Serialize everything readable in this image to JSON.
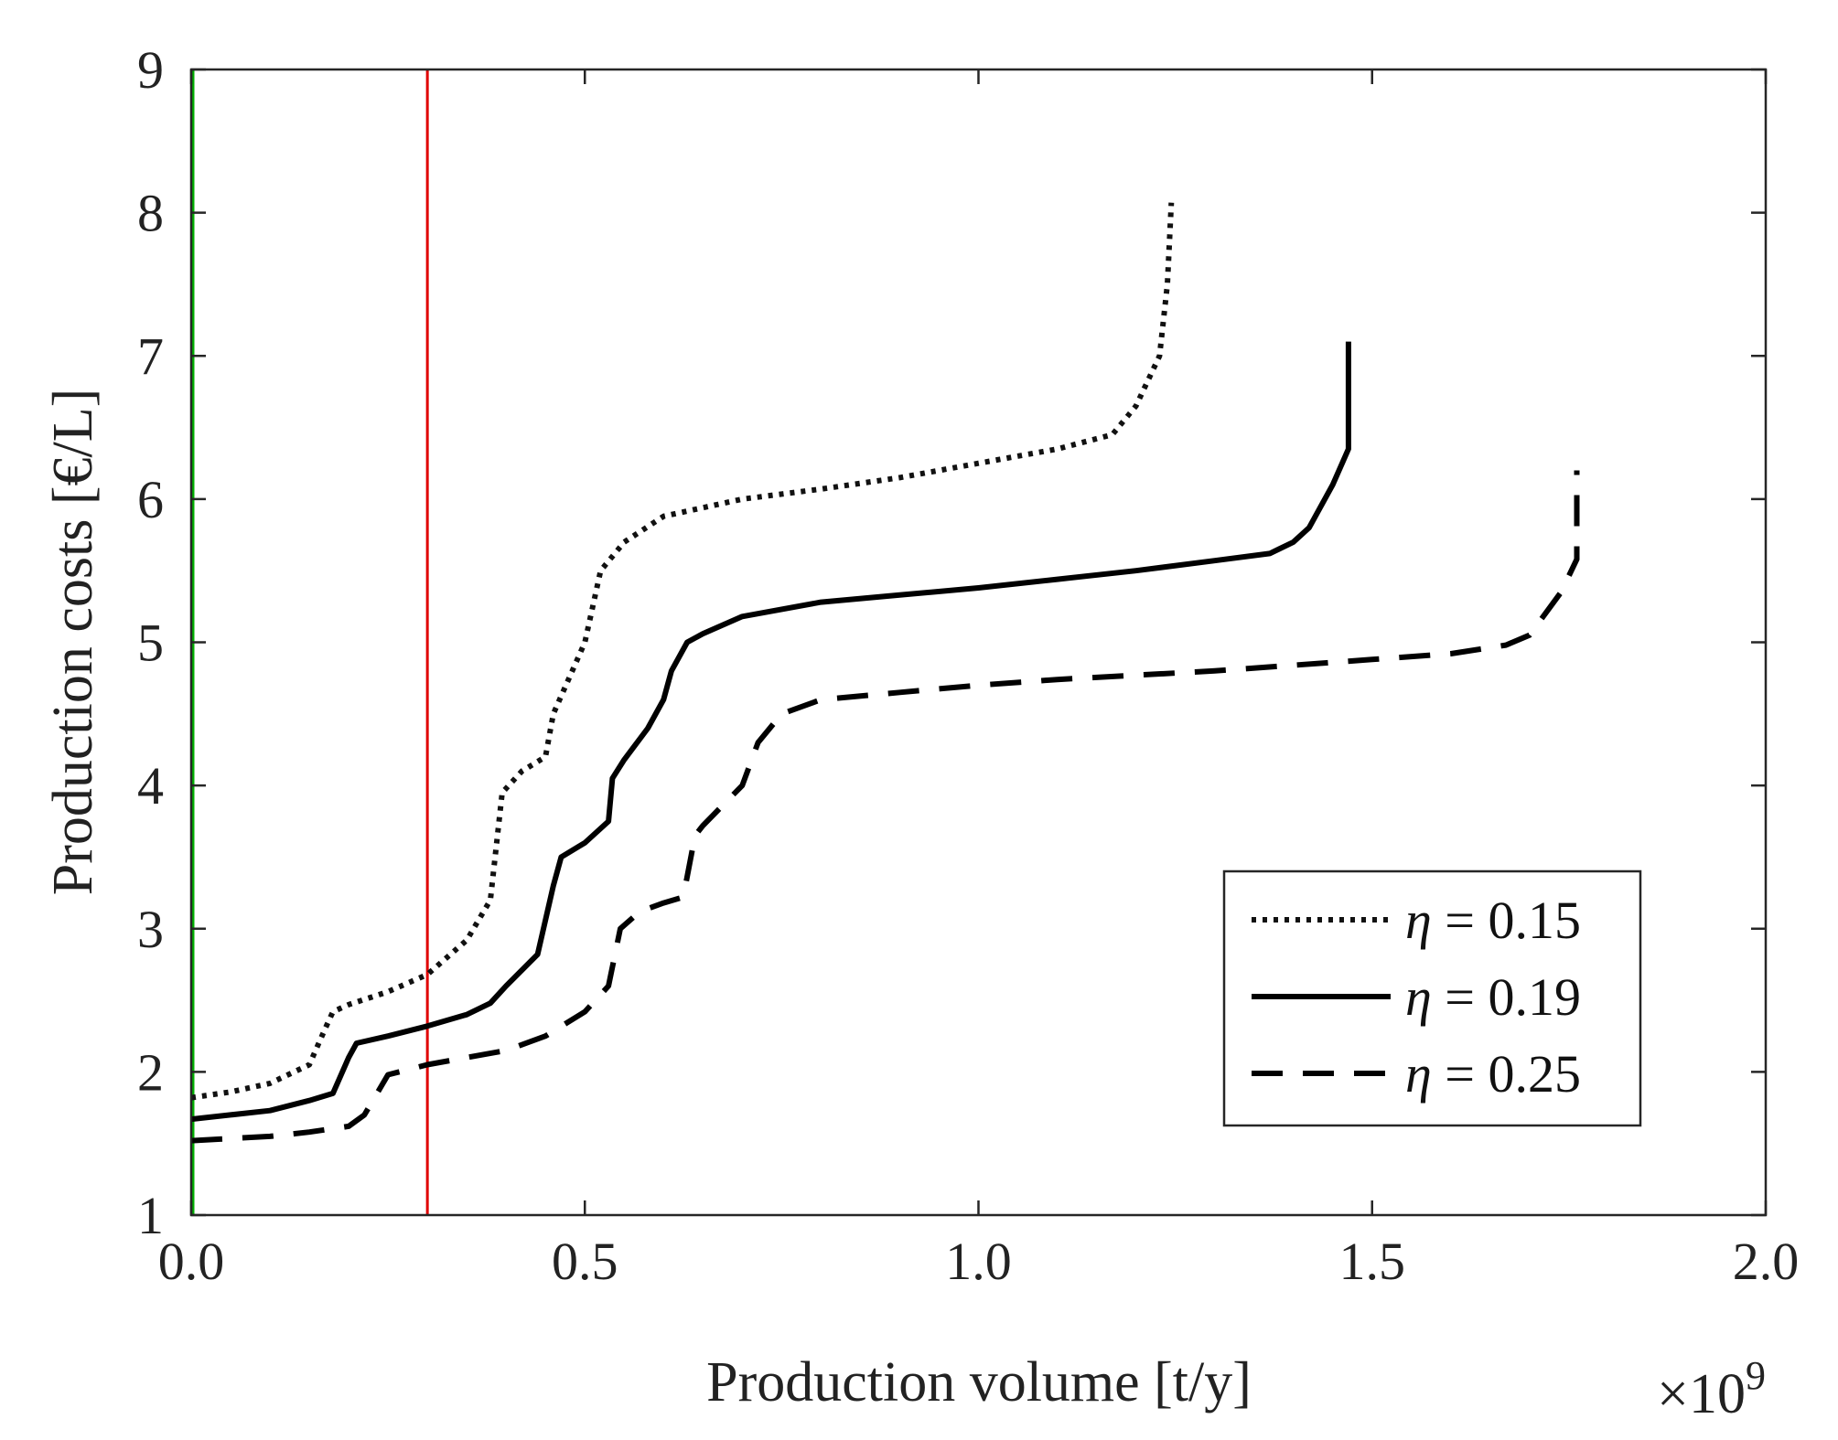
{
  "chart_data": {
    "type": "line",
    "xlabel": "Production volume [t/y]",
    "ylabel": "Production costs [€/L]",
    "x_scale_label": "×10",
    "x_scale_exponent": "9",
    "xlim": [
      0,
      2.0
    ],
    "ylim": [
      1,
      9
    ],
    "xticks": [
      0,
      0.5,
      1.0,
      1.5,
      2.0
    ],
    "xtick_labels": [
      "0.0",
      "0.5",
      "1.0",
      "1.5",
      "2.0"
    ],
    "yticks": [
      1,
      2,
      3,
      4,
      5,
      6,
      7,
      8,
      9
    ],
    "ytick_labels": [
      "1",
      "2",
      "3",
      "4",
      "5",
      "6",
      "7",
      "8",
      "9"
    ],
    "grid": false,
    "legend_position": "bottom-right",
    "vertical_lines": [
      {
        "x": 0.0,
        "color": "#00b000"
      },
      {
        "x": 0.3,
        "color": "#e00000"
      }
    ],
    "series": [
      {
        "name": "η = 0.15",
        "legend_symbol": "η",
        "legend_value": " = 0.15",
        "style": "dotted",
        "color": "#111111",
        "x": [
          0,
          0.05,
          0.1,
          0.15,
          0.17,
          0.18,
          0.2,
          0.25,
          0.3,
          0.35,
          0.38,
          0.395,
          0.42,
          0.45,
          0.46,
          0.5,
          0.52,
          0.55,
          0.6,
          0.7,
          0.8,
          0.9,
          1.0,
          1.1,
          1.17,
          1.2,
          1.23,
          1.24,
          1.245
        ],
        "y": [
          1.82,
          1.86,
          1.92,
          2.05,
          2.3,
          2.42,
          2.47,
          2.56,
          2.68,
          2.92,
          3.2,
          3.95,
          4.1,
          4.2,
          4.5,
          5.0,
          5.5,
          5.7,
          5.88,
          6.0,
          6.07,
          6.15,
          6.25,
          6.35,
          6.45,
          6.65,
          7.0,
          7.5,
          8.07
        ]
      },
      {
        "name": "η = 0.19",
        "legend_symbol": "η",
        "legend_value": " = 0.19",
        "style": "solid",
        "color": "#000000",
        "x": [
          0,
          0.05,
          0.1,
          0.15,
          0.18,
          0.2,
          0.21,
          0.25,
          0.3,
          0.35,
          0.38,
          0.4,
          0.44,
          0.46,
          0.47,
          0.5,
          0.53,
          0.535,
          0.55,
          0.58,
          0.6,
          0.61,
          0.63,
          0.65,
          0.7,
          0.8,
          0.9,
          1.0,
          1.1,
          1.2,
          1.3,
          1.37,
          1.4,
          1.42,
          1.45,
          1.47,
          1.47
        ],
        "y": [
          1.67,
          1.7,
          1.73,
          1.8,
          1.85,
          2.1,
          2.2,
          2.25,
          2.32,
          2.4,
          2.48,
          2.6,
          2.82,
          3.3,
          3.5,
          3.6,
          3.75,
          4.05,
          4.18,
          4.4,
          4.6,
          4.8,
          5.0,
          5.06,
          5.18,
          5.28,
          5.33,
          5.38,
          5.44,
          5.5,
          5.57,
          5.62,
          5.7,
          5.8,
          6.1,
          6.35,
          7.1
        ]
      },
      {
        "name": "η = 0.25",
        "legend_symbol": "η",
        "legend_value": " = 0.25",
        "style": "dashed",
        "color": "#000000",
        "x": [
          0,
          0.1,
          0.15,
          0.2,
          0.22,
          0.25,
          0.3,
          0.35,
          0.4,
          0.45,
          0.5,
          0.53,
          0.545,
          0.57,
          0.6,
          0.625,
          0.64,
          0.65,
          0.7,
          0.72,
          0.75,
          0.8,
          0.9,
          1.0,
          1.1,
          1.2,
          1.3,
          1.4,
          1.5,
          1.6,
          1.67,
          1.7,
          1.74,
          1.76,
          1.76
        ],
        "y": [
          1.52,
          1.55,
          1.58,
          1.62,
          1.7,
          1.98,
          2.05,
          2.1,
          2.15,
          2.25,
          2.42,
          2.6,
          3.0,
          3.12,
          3.18,
          3.22,
          3.65,
          3.72,
          4.0,
          4.3,
          4.5,
          4.6,
          4.65,
          4.7,
          4.74,
          4.77,
          4.8,
          4.84,
          4.88,
          4.92,
          4.98,
          5.05,
          5.35,
          5.58,
          6.2
        ]
      }
    ]
  }
}
